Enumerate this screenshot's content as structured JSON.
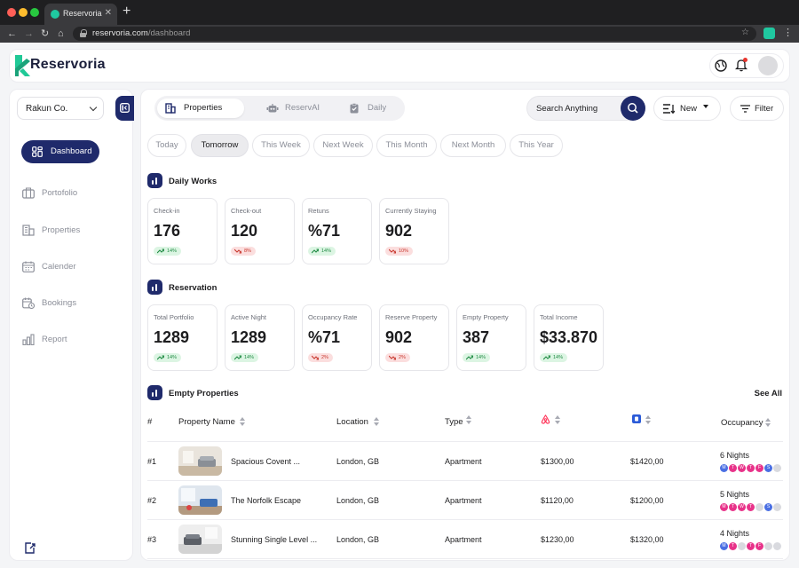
{
  "browser": {
    "tab_title": "Reservoria",
    "url_host": "reservoria.com",
    "url_path": "/dashboard"
  },
  "app": {
    "brand": "Reservoria",
    "accent": "#1f2a6b"
  },
  "sidebar": {
    "org": "Rakun Co.",
    "active": "Dashboard",
    "items": [
      "Portofolio",
      "Properties",
      "Calender",
      "Bookings",
      "Report"
    ]
  },
  "toolbar": {
    "tabs": [
      "Properties",
      "ReservAI",
      "Daily"
    ],
    "search_label": "Search Anything",
    "new_label": "New",
    "filter_label": "Filter"
  },
  "filters": [
    "Today",
    "Tomorrow",
    "This Week",
    "Next Week",
    "This Month",
    "Next Month",
    "This Year"
  ],
  "daily_works": {
    "title": "Daily Works",
    "cards": [
      {
        "label": "Check-in",
        "value": "176",
        "change": "14%",
        "trend": "up"
      },
      {
        "label": "Check-out",
        "value": "120",
        "change": "8%",
        "trend": "down"
      },
      {
        "label": "Retuns",
        "value": "%71",
        "change": "14%",
        "trend": "up"
      },
      {
        "label": "Currently Staying",
        "value": "902",
        "change": "10%",
        "trend": "down"
      }
    ]
  },
  "reservation": {
    "title": "Reservation",
    "cards": [
      {
        "label": "Total Portfolio",
        "value": "1289",
        "change": "14%",
        "trend": "up"
      },
      {
        "label": "Active Night",
        "value": "1289",
        "change": "14%",
        "trend": "up"
      },
      {
        "label": "Occupancy Rate",
        "value": "%71",
        "change": "2%",
        "trend": "down"
      },
      {
        "label": "Reserve Property",
        "value": "902",
        "change": "2%",
        "trend": "down"
      },
      {
        "label": "Empty Property",
        "value": "387",
        "change": "14%",
        "trend": "up"
      },
      {
        "label": "Total Income",
        "value": "$33.870",
        "change": "14%",
        "trend": "up"
      }
    ]
  },
  "empty_properties": {
    "title": "Empty Properties",
    "see_all": "See All",
    "columns": {
      "index": "#",
      "name": "Property Name",
      "location": "Location",
      "type": "Type",
      "airbnb_icon": "airbnb-icon",
      "booking_icon": "booking-icon",
      "occupancy": "Occupancy"
    },
    "rows": [
      {
        "index": "#1",
        "name": "Spacious Covent ...",
        "location": "London, GB",
        "type": "Apartment",
        "airbnb": "$1300,00",
        "booking": "$1420,00",
        "nights": "6 Nights",
        "days": [
          {
            "l": "M",
            "s": "blue"
          },
          {
            "l": "T",
            "s": "pink"
          },
          {
            "l": "W",
            "s": "pink"
          },
          {
            "l": "T",
            "s": "pink"
          },
          {
            "l": "F",
            "s": "pink"
          },
          {
            "l": "S",
            "s": "blue"
          },
          {
            "l": "",
            "s": "empty"
          }
        ]
      },
      {
        "index": "#2",
        "name": "The Norfolk Escape",
        "location": "London, GB",
        "type": "Apartment",
        "airbnb": "$1120,00",
        "booking": "$1200,00",
        "nights": "5 Nights",
        "days": [
          {
            "l": "M",
            "s": "pink"
          },
          {
            "l": "T",
            "s": "pink"
          },
          {
            "l": "W",
            "s": "pink"
          },
          {
            "l": "T",
            "s": "pink"
          },
          {
            "l": "",
            "s": "empty"
          },
          {
            "l": "S",
            "s": "blue"
          },
          {
            "l": "",
            "s": "empty"
          }
        ]
      },
      {
        "index": "#3",
        "name": "Stunning Single Level ...",
        "location": "London, GB",
        "type": "Apartment",
        "airbnb": "$1230,00",
        "booking": "$1320,00",
        "nights": "4 Nights",
        "days": [
          {
            "l": "M",
            "s": "blue"
          },
          {
            "l": "T",
            "s": "pink"
          },
          {
            "l": "",
            "s": "empty"
          },
          {
            "l": "T",
            "s": "pink"
          },
          {
            "l": "F",
            "s": "pink"
          },
          {
            "l": "",
            "s": "empty"
          },
          {
            "l": "",
            "s": "empty"
          }
        ]
      }
    ]
  },
  "colors": {
    "blue_day": "#4a6fe3",
    "pink_day": "#e8338a",
    "empty_day": "#d9dadf"
  }
}
